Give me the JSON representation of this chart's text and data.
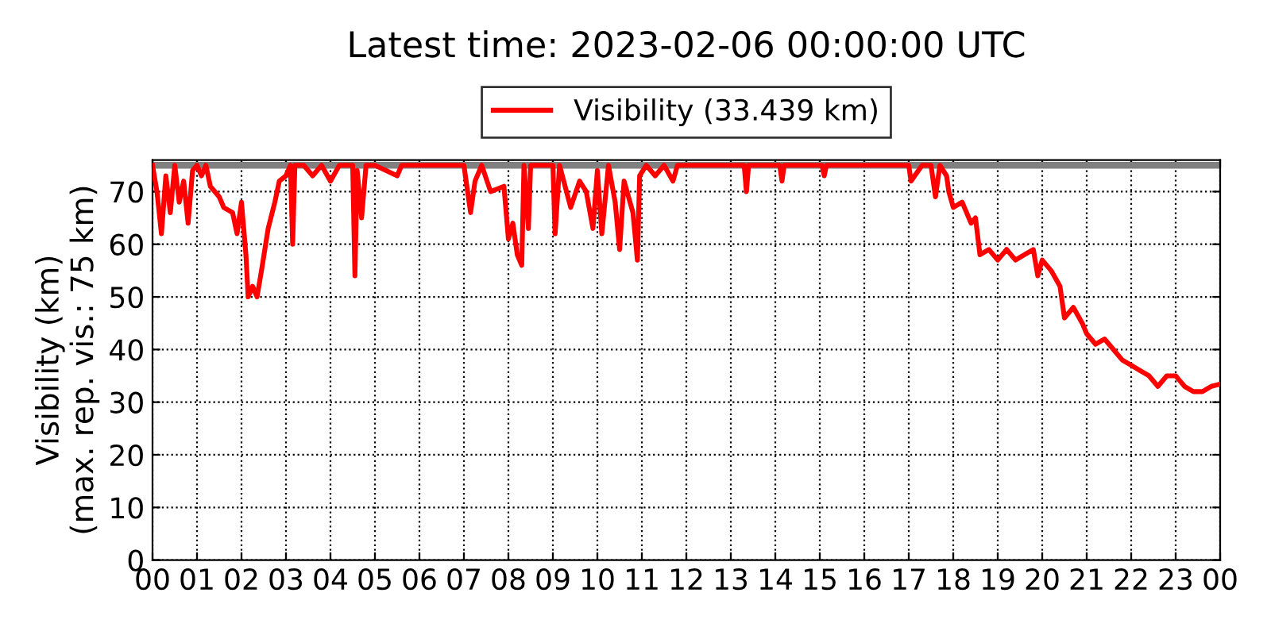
{
  "chart_data": {
    "type": "line",
    "title": "Latest time: 2023-02-06 00:00:00 UTC",
    "ylabel": "Visibility (km)\n(max. rep. vis.: 75 km)",
    "x": [
      0,
      0.1,
      0.2,
      0.3,
      0.4,
      0.5,
      0.6,
      0.7,
      0.8,
      0.9,
      1.0,
      1.1,
      1.2,
      1.3,
      1.5,
      1.6,
      1.8,
      1.9,
      2.0,
      2.1,
      2.15,
      2.25,
      2.35,
      2.45,
      2.6,
      2.75,
      2.85,
      3.0,
      3.1,
      3.15,
      3.2,
      3.4,
      3.6,
      3.8,
      4.0,
      4.2,
      4.5,
      4.55,
      4.6,
      4.7,
      4.8,
      5.0,
      5.5,
      5.6,
      7.0,
      7.15,
      7.25,
      7.4,
      7.6,
      7.9,
      8.0,
      8.1,
      8.2,
      8.3,
      8.35,
      8.45,
      8.5,
      9.0,
      9.05,
      9.15,
      9.4,
      9.6,
      9.75,
      9.9,
      10.0,
      10.1,
      10.25,
      10.4,
      10.5,
      10.6,
      10.8,
      10.9,
      10.95,
      11.1,
      11.3,
      11.5,
      11.7,
      11.8,
      13.3,
      13.35,
      13.4,
      14.1,
      14.15,
      14.2,
      15.05,
      15.1,
      15.15,
      17.0,
      17.05,
      17.3,
      17.5,
      17.6,
      17.7,
      17.85,
      17.9,
      18.0,
      18.2,
      18.4,
      18.5,
      18.6,
      18.8,
      19.0,
      19.2,
      19.4,
      19.6,
      19.8,
      19.9,
      20.0,
      20.2,
      20.4,
      20.5,
      20.7,
      20.9,
      21.0,
      21.2,
      21.4,
      21.6,
      21.8,
      22.0,
      22.2,
      22.4,
      22.6,
      22.8,
      23.0,
      23.1,
      23.2,
      23.4,
      23.6,
      23.8,
      24.0
    ],
    "series": [
      {
        "name": "Visibility (33.439 km)",
        "color": "#ff0000",
        "values": [
          75,
          70,
          62,
          73,
          66,
          75,
          68,
          72,
          64,
          74,
          75,
          73,
          75,
          71,
          69,
          67,
          66,
          62,
          68,
          58,
          50,
          52,
          50,
          55,
          63,
          68,
          72,
          73,
          75,
          60,
          75,
          75,
          73,
          75,
          72,
          75,
          75,
          54,
          74,
          65,
          75,
          75,
          73,
          75,
          75,
          66,
          72,
          75,
          70,
          71,
          61,
          64,
          58,
          56,
          75,
          63,
          75,
          75,
          62,
          75,
          67,
          72,
          70,
          63,
          74,
          62,
          75,
          68,
          59,
          72,
          66,
          57,
          73,
          75,
          73,
          75,
          72,
          75,
          75,
          70,
          75,
          75,
          72,
          75,
          75,
          73,
          75,
          75,
          72,
          75,
          75,
          69,
          75,
          73,
          70,
          67,
          68,
          64,
          65,
          58,
          59,
          57,
          59,
          57,
          58,
          59,
          54,
          57,
          55,
          52,
          46,
          48,
          45,
          43,
          41,
          42,
          40,
          38,
          37,
          36,
          35,
          33,
          35,
          35,
          34,
          33,
          32,
          32,
          33,
          33.439
        ]
      }
    ],
    "xlim": [
      0,
      24
    ],
    "xticks": [
      {
        "value": 0,
        "label": "00"
      },
      {
        "value": 1,
        "label": "01"
      },
      {
        "value": 2,
        "label": "02"
      },
      {
        "value": 3,
        "label": "03"
      },
      {
        "value": 4,
        "label": "04"
      },
      {
        "value": 5,
        "label": "05"
      },
      {
        "value": 6,
        "label": "06"
      },
      {
        "value": 7,
        "label": "07"
      },
      {
        "value": 8,
        "label": "08"
      },
      {
        "value": 9,
        "label": "09"
      },
      {
        "value": 10,
        "label": "10"
      },
      {
        "value": 11,
        "label": "11"
      },
      {
        "value": 12,
        "label": "12"
      },
      {
        "value": 13,
        "label": "13"
      },
      {
        "value": 14,
        "label": "14"
      },
      {
        "value": 15,
        "label": "15"
      },
      {
        "value": 16,
        "label": "16"
      },
      {
        "value": 17,
        "label": "17"
      },
      {
        "value": 18,
        "label": "18"
      },
      {
        "value": 19,
        "label": "19"
      },
      {
        "value": 20,
        "label": "20"
      },
      {
        "value": 21,
        "label": "21"
      },
      {
        "value": 22,
        "label": "22"
      },
      {
        "value": 23,
        "label": "23"
      },
      {
        "value": 24,
        "label": "00"
      }
    ],
    "ylim": [
      0,
      76
    ],
    "yticks": [
      0,
      10,
      20,
      30,
      40,
      50,
      60,
      70
    ],
    "ref_lines": [
      {
        "axis": "y",
        "value": 75,
        "color": "#808080"
      }
    ],
    "grid": true,
    "legend": "top",
    "line_style": "solid"
  }
}
